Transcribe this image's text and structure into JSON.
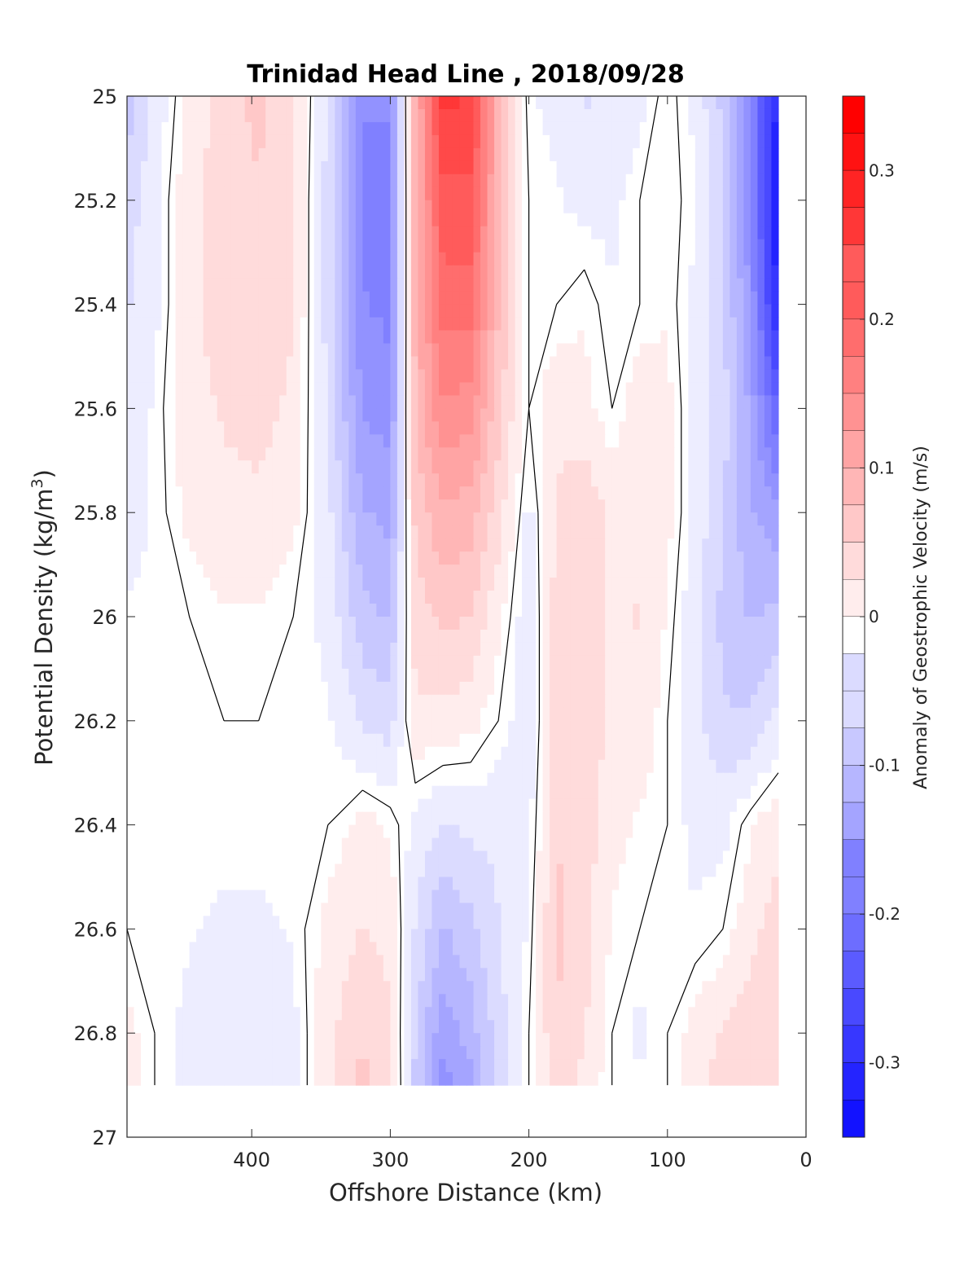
{
  "chart_data": {
    "type": "heatmap",
    "subtype": "filled-contour",
    "title": "Trinidad Head Line , 2018/09/28",
    "xlabel": "Offshore Distance (km)",
    "ylabel_main": "Potential Density (kg/m",
    "ylabel_sup": "3",
    "ylabel_close": ")",
    "xlim": [
      490,
      0
    ],
    "x_reversed": true,
    "ylim": [
      25,
      27
    ],
    "y_reversed": true,
    "x_ticks": [
      400,
      300,
      200,
      100,
      0
    ],
    "y_ticks": [
      25,
      25.2,
      25.4,
      25.6,
      25.8,
      26,
      26.2,
      26.4,
      26.6,
      26.8,
      27
    ],
    "y_tick_labels": [
      "25",
      "25.2",
      "25.4",
      "25.6",
      "25.8",
      "26",
      "26.2",
      "26.4",
      "26.6",
      "26.8",
      "27"
    ],
    "data_extent": {
      "x": [
        490,
        20
      ],
      "y": [
        25,
        26.9
      ]
    },
    "colorbar": {
      "label": "Anomaly of Geostrophic Velocity (m/s)",
      "clim": [
        -0.35,
        0.35
      ],
      "level_step": 0.025,
      "ticks": [
        0.3,
        0.2,
        0.1,
        0,
        -0.1,
        -0.2,
        -0.3
      ],
      "tick_labels": [
        "0.3",
        "0.2",
        "0.1",
        "0",
        "-0.1",
        "-0.2",
        "-0.3"
      ],
      "colormap": "blue-white-red",
      "neg_color": "#0000ff",
      "zero_color": "#ffffff",
      "pos_color": "#ff0000"
    },
    "zero_contour_color": "#000000",
    "x_stations": [
      490,
      470,
      445,
      420,
      395,
      370,
      345,
      320,
      300,
      282,
      262,
      242,
      222,
      200,
      180,
      160,
      140,
      120,
      100,
      80,
      60,
      40,
      20
    ],
    "y_levels": [
      25.0,
      25.2,
      25.4,
      25.6,
      25.8,
      26.0,
      26.2,
      26.4,
      26.6,
      26.8,
      26.9
    ],
    "velocity_anomaly": [
      [
        -0.08,
        -0.03,
        0.02,
        0.05,
        0.07,
        0.04,
        -0.04,
        -0.16,
        -0.16,
        0.1,
        0.27,
        0.26,
        0.1,
        -0.01,
        -0.02,
        -0.04,
        -0.03,
        -0.02,
        0.01,
        -0.02,
        -0.07,
        -0.17,
        -0.3
      ],
      [
        -0.05,
        -0.02,
        0.03,
        0.05,
        0.06,
        0.04,
        -0.05,
        -0.17,
        -0.17,
        0.1,
        0.23,
        0.23,
        0.1,
        0.0,
        -0.01,
        -0.02,
        -0.02,
        0.0,
        0.01,
        -0.01,
        -0.06,
        -0.16,
        -0.32
      ],
      [
        -0.04,
        -0.02,
        0.03,
        0.05,
        0.06,
        0.04,
        -0.05,
        -0.16,
        -0.17,
        0.1,
        0.2,
        0.2,
        0.09,
        0.0,
        0.0,
        0.01,
        -0.01,
        0.0,
        0.01,
        -0.02,
        -0.06,
        -0.14,
        -0.3
      ],
      [
        -0.03,
        -0.01,
        0.03,
        0.04,
        0.05,
        0.03,
        -0.04,
        -0.14,
        -0.15,
        0.09,
        0.16,
        0.15,
        0.07,
        0.0,
        0.03,
        0.02,
        0.0,
        0.03,
        0.02,
        -0.02,
        -0.05,
        -0.12,
        -0.22
      ],
      [
        -0.02,
        -0.01,
        0.02,
        0.03,
        0.03,
        0.02,
        -0.03,
        -0.11,
        -0.12,
        0.07,
        0.11,
        0.1,
        0.05,
        -0.02,
        0.04,
        0.06,
        0.03,
        0.03,
        0.02,
        -0.02,
        -0.06,
        -0.11,
        -0.13
      ],
      [
        -0.01,
        -0.01,
        0.0,
        0.01,
        0.01,
        0.0,
        -0.02,
        -0.08,
        -0.09,
        0.05,
        0.07,
        0.06,
        0.02,
        -0.03,
        0.05,
        0.06,
        0.03,
        0.04,
        0.01,
        -0.03,
        -0.07,
        -0.09,
        -0.08
      ],
      [
        0.0,
        0.0,
        0.0,
        0.0,
        0.0,
        0.0,
        -0.01,
        -0.04,
        -0.05,
        0.03,
        0.03,
        0.02,
        0.0,
        -0.03,
        0.05,
        0.06,
        0.03,
        0.03,
        0.0,
        -0.03,
        -0.06,
        -0.06,
        -0.03
      ],
      [
        0.0,
        0.0,
        0.0,
        0.0,
        0.0,
        0.0,
        0.0,
        0.02,
        0.01,
        -0.02,
        -0.04,
        -0.03,
        -0.03,
        -0.02,
        0.06,
        0.05,
        0.02,
        0.01,
        0.0,
        -0.02,
        -0.02,
        0.01,
        0.03
      ],
      [
        0.0,
        0.0,
        -0.01,
        -0.02,
        -0.02,
        -0.01,
        0.02,
        0.04,
        0.03,
        -0.04,
        -0.09,
        -0.07,
        -0.04,
        -0.01,
        0.07,
        0.05,
        0.01,
        0.0,
        0.0,
        -0.01,
        0.0,
        0.03,
        0.05
      ],
      [
        0.02,
        0.0,
        -0.02,
        -0.03,
        -0.03,
        -0.02,
        0.03,
        0.06,
        0.04,
        -0.06,
        -0.13,
        -0.1,
        -0.05,
        0.0,
        0.06,
        0.04,
        0.0,
        -0.02,
        0.0,
        0.02,
        0.04,
        0.05,
        0.04
      ],
      [
        0.03,
        0.0,
        -0.02,
        -0.03,
        -0.03,
        -0.02,
        0.03,
        0.07,
        0.05,
        -0.07,
        -0.15,
        -0.12,
        -0.05,
        0.0,
        0.05,
        0.03,
        0.0,
        -0.01,
        0.0,
        0.03,
        0.05,
        0.06,
        0.04
      ]
    ]
  }
}
